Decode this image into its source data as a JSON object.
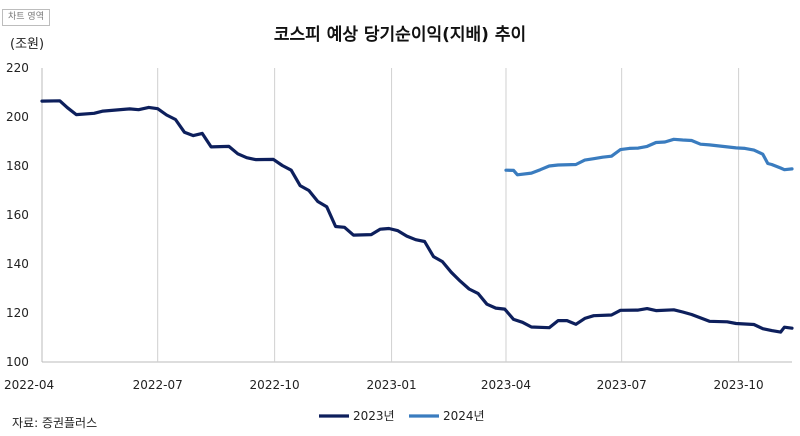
{
  "chart_data": {
    "type": "line",
    "title": "코스피 예상 당기순이익(지배) 추이",
    "unit_label": "(조원)",
    "corner_label": "차트 영역",
    "source": "자료: 증권플러스",
    "ylim": [
      100,
      220
    ],
    "yticks": [
      100,
      120,
      140,
      160,
      180,
      200,
      220
    ],
    "xticks": [
      "2022-04",
      "2022-07",
      "2022-10",
      "2023-01",
      "2023-04",
      "2023-07",
      "2023-10"
    ],
    "xlim": [
      "2022-04-01",
      "2023-11-12"
    ],
    "grid": "vertical",
    "legend_position": "bottom",
    "series": [
      {
        "name": "2023년",
        "color": "#0d1f5c",
        "points": [
          [
            "2022-04-01",
            206.5
          ],
          [
            "2022-04-15",
            206.6
          ],
          [
            "2022-04-21",
            203.8
          ],
          [
            "2022-04-28",
            201.0
          ],
          [
            "2022-05-12",
            201.5
          ],
          [
            "2022-05-19",
            202.4
          ],
          [
            "2022-06-09",
            203.3
          ],
          [
            "2022-06-16",
            203.0
          ],
          [
            "2022-06-24",
            203.9
          ],
          [
            "2022-07-01",
            203.4
          ],
          [
            "2022-07-08",
            200.8
          ],
          [
            "2022-07-15",
            199.0
          ],
          [
            "2022-07-22",
            193.8
          ],
          [
            "2022-07-29",
            192.4
          ],
          [
            "2022-08-05",
            193.3
          ],
          [
            "2022-08-12",
            187.8
          ],
          [
            "2022-08-26",
            188.0
          ],
          [
            "2022-09-02",
            185.0
          ],
          [
            "2022-09-09",
            183.4
          ],
          [
            "2022-09-16",
            182.6
          ],
          [
            "2022-09-30",
            182.7
          ],
          [
            "2022-10-07",
            180.2
          ],
          [
            "2022-10-14",
            178.3
          ],
          [
            "2022-10-21",
            172.0
          ],
          [
            "2022-10-28",
            170.0
          ],
          [
            "2022-11-04",
            165.5
          ],
          [
            "2022-11-11",
            163.4
          ],
          [
            "2022-11-18",
            155.3
          ],
          [
            "2022-11-25",
            155.0
          ],
          [
            "2022-12-02",
            151.8
          ],
          [
            "2022-12-16",
            152.0
          ],
          [
            "2022-12-23",
            154.2
          ],
          [
            "2022-12-30",
            154.5
          ],
          [
            "2023-01-06",
            153.6
          ],
          [
            "2023-01-13",
            151.4
          ],
          [
            "2023-01-20",
            149.9
          ],
          [
            "2023-01-27",
            149.2
          ],
          [
            "2023-02-03",
            143.0
          ],
          [
            "2023-02-10",
            141.0
          ],
          [
            "2023-02-17",
            136.6
          ],
          [
            "2023-02-24",
            133.0
          ],
          [
            "2023-03-03",
            129.8
          ],
          [
            "2023-03-10",
            128.0
          ],
          [
            "2023-03-17",
            123.6
          ],
          [
            "2023-03-24",
            122.0
          ],
          [
            "2023-03-31",
            121.6
          ],
          [
            "2023-04-07",
            117.4
          ],
          [
            "2023-04-14",
            116.2
          ],
          [
            "2023-04-21",
            114.3
          ],
          [
            "2023-05-05",
            114.0
          ],
          [
            "2023-05-12",
            116.9
          ],
          [
            "2023-05-19",
            116.9
          ],
          [
            "2023-05-26",
            115.4
          ],
          [
            "2023-06-02",
            117.8
          ],
          [
            "2023-06-09",
            118.9
          ],
          [
            "2023-06-23",
            119.2
          ],
          [
            "2023-06-30",
            121.1
          ],
          [
            "2023-07-14",
            121.2
          ],
          [
            "2023-07-21",
            121.8
          ],
          [
            "2023-07-28",
            121.0
          ],
          [
            "2023-08-11",
            121.3
          ],
          [
            "2023-08-18",
            120.4
          ],
          [
            "2023-08-25",
            119.4
          ],
          [
            "2023-09-01",
            118.0
          ],
          [
            "2023-09-08",
            116.6
          ],
          [
            "2023-09-22",
            116.4
          ],
          [
            "2023-09-29",
            115.7
          ],
          [
            "2023-10-13",
            115.3
          ],
          [
            "2023-10-20",
            113.6
          ],
          [
            "2023-10-27",
            112.8
          ],
          [
            "2023-11-03",
            112.2
          ],
          [
            "2023-11-06",
            114.2
          ],
          [
            "2023-11-12",
            113.8
          ]
        ]
      },
      {
        "name": "2024년",
        "color": "#3a7cbf",
        "points": [
          [
            "2023-04-01",
            178.3
          ],
          [
            "2023-04-07",
            178.2
          ],
          [
            "2023-04-10",
            176.4
          ],
          [
            "2023-04-21",
            177.1
          ],
          [
            "2023-04-28",
            178.5
          ],
          [
            "2023-05-05",
            180.0
          ],
          [
            "2023-05-12",
            180.4
          ],
          [
            "2023-05-26",
            180.6
          ],
          [
            "2023-06-02",
            182.4
          ],
          [
            "2023-06-09",
            183.0
          ],
          [
            "2023-06-16",
            183.6
          ],
          [
            "2023-06-23",
            184.0
          ],
          [
            "2023-06-30",
            186.7
          ],
          [
            "2023-07-07",
            187.2
          ],
          [
            "2023-07-14",
            187.3
          ],
          [
            "2023-07-21",
            188.0
          ],
          [
            "2023-07-28",
            189.6
          ],
          [
            "2023-08-04",
            189.8
          ],
          [
            "2023-08-11",
            190.9
          ],
          [
            "2023-08-18",
            190.6
          ],
          [
            "2023-08-25",
            190.4
          ],
          [
            "2023-09-01",
            188.9
          ],
          [
            "2023-09-08",
            188.6
          ],
          [
            "2023-09-15",
            188.2
          ],
          [
            "2023-09-22",
            187.8
          ],
          [
            "2023-09-29",
            187.4
          ],
          [
            "2023-10-06",
            187.2
          ],
          [
            "2023-10-13",
            186.5
          ],
          [
            "2023-10-20",
            184.8
          ],
          [
            "2023-10-24",
            181.0
          ],
          [
            "2023-10-27",
            180.6
          ],
          [
            "2023-11-03",
            179.2
          ],
          [
            "2023-11-06",
            178.5
          ],
          [
            "2023-11-12",
            178.8
          ]
        ]
      }
    ]
  }
}
